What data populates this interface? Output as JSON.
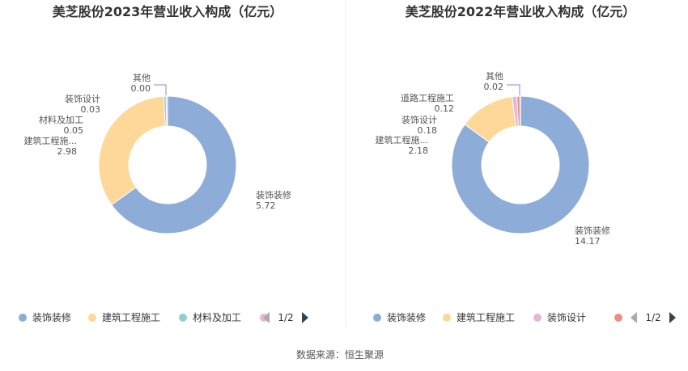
{
  "chart_data": [
    {
      "type": "pie",
      "title": "美芝股份2023年营业收入构成（亿元）",
      "series": [
        {
          "name": "装饰装修",
          "value": 5.72,
          "label": "5.72",
          "color": "#8eacd8"
        },
        {
          "name": "建筑工程施工",
          "display_name": "建筑工程施...",
          "value": 2.98,
          "label": "2.98",
          "color": "#fdd898"
        },
        {
          "name": "材料及加工",
          "value": 0.05,
          "label": "0.05",
          "color": "#8ed0d4"
        },
        {
          "name": "装饰设计",
          "value": 0.03,
          "label": "0.03",
          "color": "#e7b6d6"
        },
        {
          "name": "其他",
          "value": 0.0,
          "label": "0.00",
          "color": "#8a86e0"
        }
      ],
      "legend": {
        "items": [
          "装饰装修",
          "建筑工程施工",
          "材料及加工",
          ""
        ],
        "page": "1/2"
      }
    },
    {
      "type": "pie",
      "title": "美芝股份2022年营业收入构成（亿元）",
      "series": [
        {
          "name": "装饰装修",
          "value": 14.17,
          "label": "14.17",
          "color": "#8eacd8"
        },
        {
          "name": "建筑工程施工",
          "display_name": "建筑工程施...",
          "value": 2.18,
          "label": "2.18",
          "color": "#fdd898"
        },
        {
          "name": "装饰设计",
          "value": 0.18,
          "label": "0.18",
          "color": "#e7b6d6"
        },
        {
          "name": "道路工程施工",
          "value": 0.12,
          "label": "0.12",
          "color": "#ee8f83"
        },
        {
          "name": "其他",
          "value": 0.02,
          "label": "0.02",
          "color": "#8a86e0"
        }
      ],
      "legend": {
        "items": [
          "装饰装修",
          "建筑工程施工",
          "装饰设计",
          ""
        ],
        "page": "1/2"
      }
    }
  ],
  "source": "数据来源：恒生聚源",
  "colors": {
    "legend_arrow": "#2f4554",
    "legend_arrow_disabled": "#aaaaaa"
  }
}
